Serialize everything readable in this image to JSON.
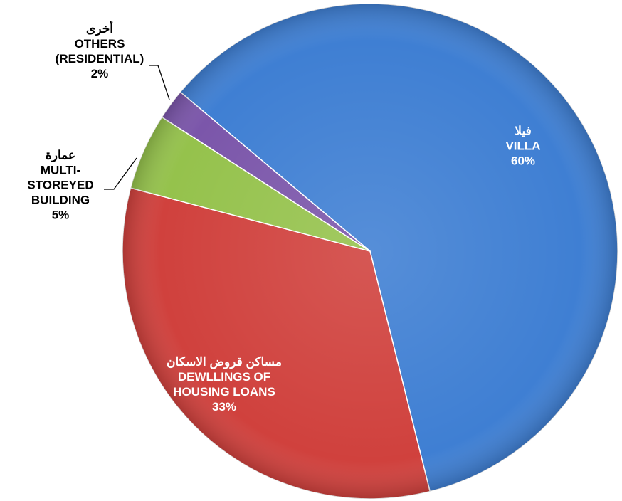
{
  "chart_data": {
    "type": "pie",
    "categories": [
      "VILLA",
      "DEWLLINGS OF HOUSING LOANS",
      "MULTI-STOREYED BUILDING",
      "OTHERS (RESIDENTIAL)"
    ],
    "arabic_labels": [
      "فيلا",
      "مساكن قروض الاسكان",
      "عمارة",
      "أخرى"
    ],
    "values": [
      60,
      33,
      5,
      2
    ],
    "value_labels": [
      "60%",
      "33%",
      "5%",
      "2%"
    ],
    "colors": [
      "#3f7fd3",
      "#d0413d",
      "#95c24c",
      "#7b56aa"
    ]
  }
}
